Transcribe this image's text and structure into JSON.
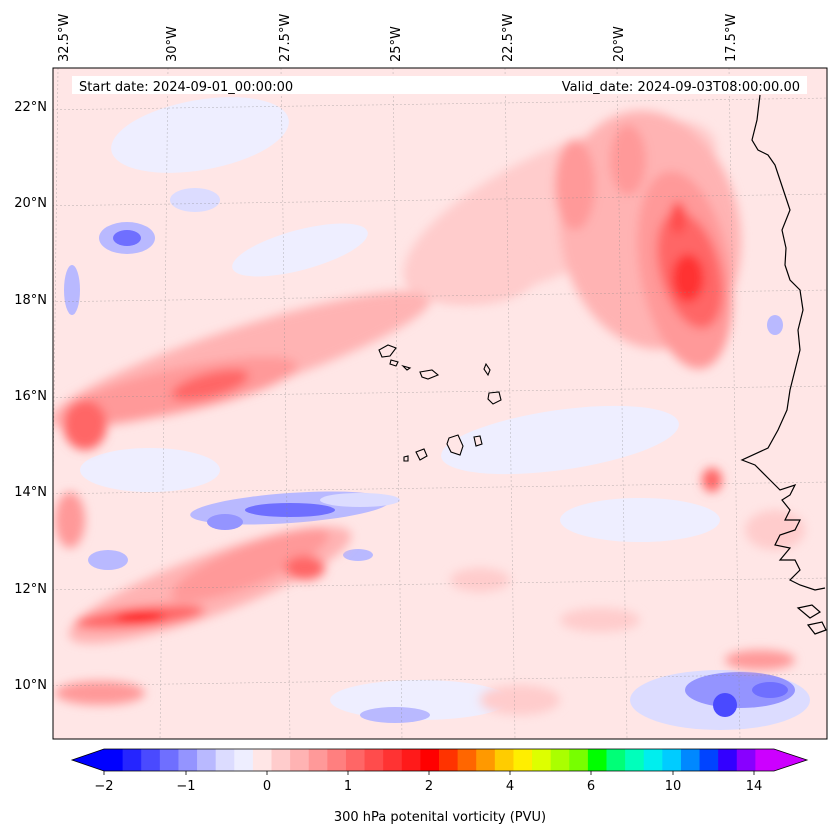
{
  "header": {
    "start_date": "Start date: 2024-09-01_00:00:00",
    "valid_date": "Valid_date: 2024-09-03T08:00:00.00"
  },
  "map": {
    "longitude_labels": [
      "32.5°W",
      "30°W",
      "27.5°W",
      "25°W",
      "22.5°W",
      "20°W",
      "17.5°W"
    ],
    "latitude_labels": [
      "22°N",
      "20°N",
      "18°N",
      "16°N",
      "14°N",
      "12°N",
      "10°N"
    ]
  },
  "colorbar": {
    "label": "300 hPa potenital vorticity (PVU)",
    "tick_labels": [
      "−2",
      "−1",
      "0",
      "1",
      "2",
      "4",
      "6",
      "10",
      "14"
    ],
    "colors": [
      "#0000ff",
      "#2525ff",
      "#4a4aff",
      "#6f6fff",
      "#9494ff",
      "#b9b9ff",
      "#dcdcff",
      "#eeeeff",
      "#ffe6e6",
      "#ffcccc",
      "#ffb3b3",
      "#ff9999",
      "#ff7f7f",
      "#ff6666",
      "#ff4c4c",
      "#ff3333",
      "#ff1a1a",
      "#ff0000",
      "#ff3300",
      "#ff6600",
      "#ff9900",
      "#ffcc00",
      "#ffee00",
      "#ddff00",
      "#aaff00",
      "#77ff00",
      "#00ff00",
      "#00ff77",
      "#00ffbb",
      "#00eeee",
      "#00ccff",
      "#0088ff",
      "#0044ff",
      "#3300ff",
      "#8800ff",
      "#cc00ff"
    ]
  }
}
